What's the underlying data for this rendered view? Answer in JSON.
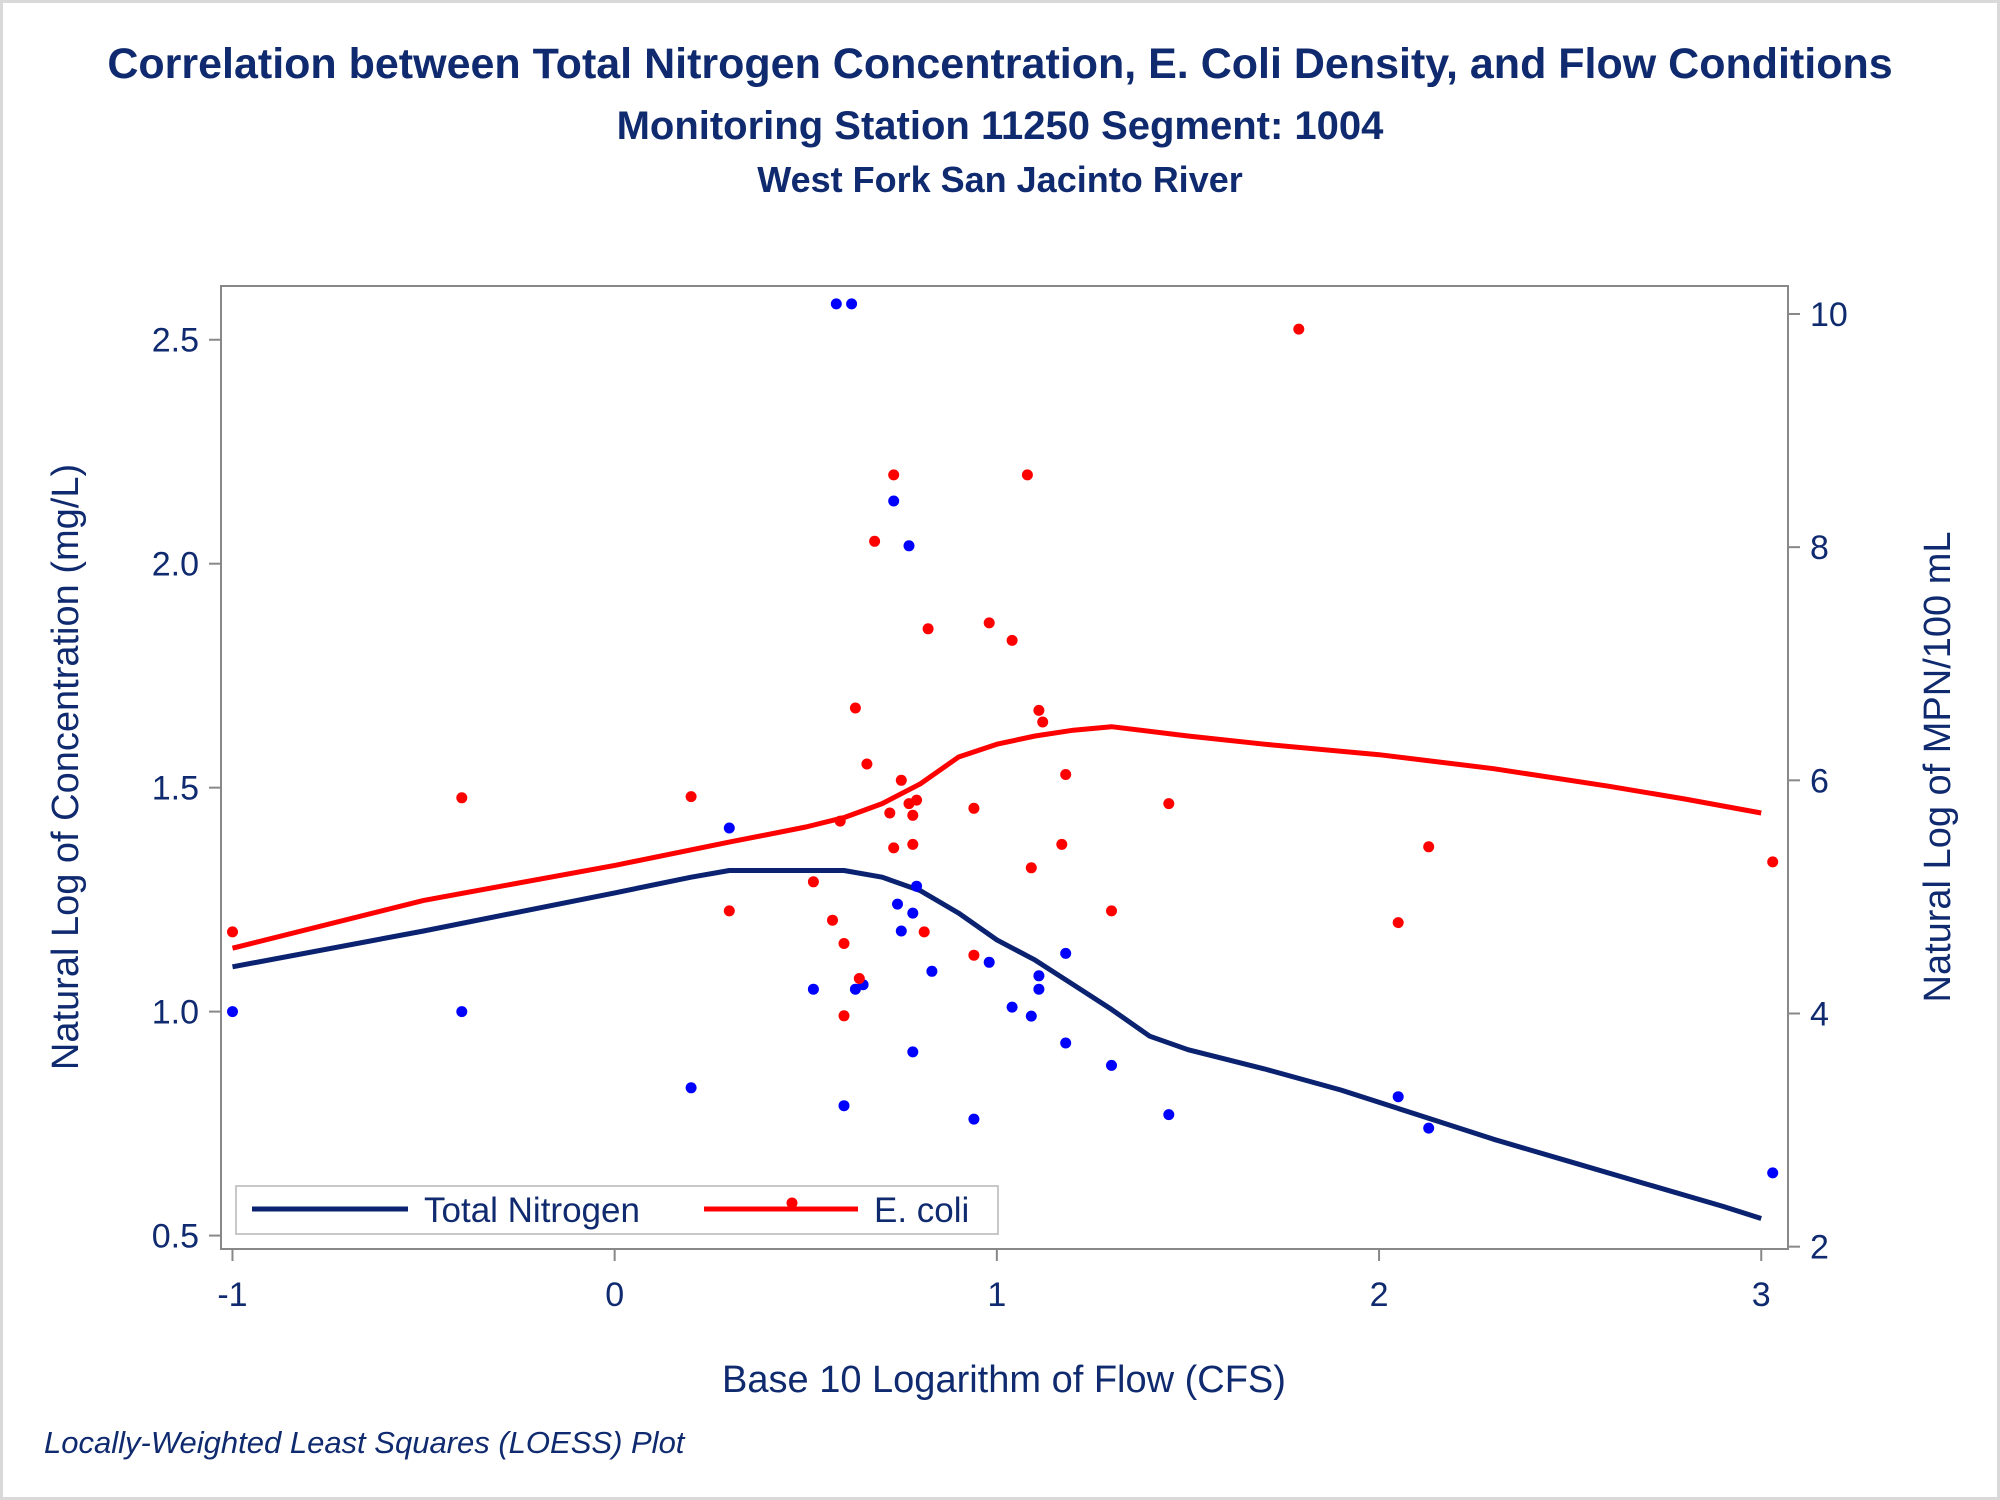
{
  "title": "Correlation between Total Nitrogen Concentration, E. Coli Density, and Flow Conditions",
  "subtitle": "Monitoring Station 11250 Segment: 1004",
  "subtitle2": "West Fork San Jacinto River",
  "footnote": "Locally-Weighted Least Squares (LOESS) Plot",
  "colors": {
    "nitrogen": "#0a2270",
    "ecoli": "#ff0000",
    "nitrogen_points": "#0000ff",
    "text": "#0f2a6e",
    "axis": "#888888"
  },
  "chart_data": {
    "type": "scatter",
    "xlabel": "Base 10 Logarithm of Flow (CFS)",
    "ylabel": "Natural Log of Concentration (mg/L)",
    "y2label": "Natural Log of MPN/100 mL",
    "xlim": [
      -1.03,
      3.07
    ],
    "ylim": [
      0.47,
      2.62
    ],
    "y2lim": [
      1.98,
      10.24
    ],
    "xticks": [
      "-1",
      "0",
      "1",
      "2",
      "3"
    ],
    "yticks": [
      "0.5",
      "1.0",
      "1.5",
      "2.0",
      "2.5"
    ],
    "y2ticks": [
      "2",
      "4",
      "6",
      "8",
      "10"
    ],
    "legend_position": "bottom-left",
    "series": [
      {
        "name": "Total Nitrogen",
        "axis": "left",
        "points": [
          [
            -1.0,
            1.0
          ],
          [
            -0.4,
            1.0
          ],
          [
            0.2,
            0.83
          ],
          [
            0.3,
            1.41
          ],
          [
            0.52,
            1.05
          ],
          [
            0.58,
            2.58
          ],
          [
            0.6,
            0.79
          ],
          [
            0.62,
            2.58
          ],
          [
            0.63,
            1.05
          ],
          [
            0.65,
            1.06
          ],
          [
            0.73,
            2.14
          ],
          [
            0.74,
            1.24
          ],
          [
            0.75,
            1.18
          ],
          [
            0.77,
            2.04
          ],
          [
            0.78,
            0.91
          ],
          [
            0.78,
            1.22
          ],
          [
            0.79,
            1.28
          ],
          [
            0.83,
            1.09
          ],
          [
            0.94,
            0.76
          ],
          [
            0.98,
            1.11
          ],
          [
            1.04,
            1.01
          ],
          [
            1.09,
            0.99
          ],
          [
            1.11,
            1.08
          ],
          [
            1.11,
            1.05
          ],
          [
            1.18,
            0.93
          ],
          [
            1.18,
            1.13
          ],
          [
            1.3,
            0.88
          ],
          [
            1.45,
            0.77
          ],
          [
            2.05,
            0.81
          ],
          [
            2.13,
            0.74
          ],
          [
            3.03,
            0.64
          ]
        ],
        "loess": [
          [
            -1.0,
            1.1
          ],
          [
            -0.5,
            1.18
          ],
          [
            0.0,
            1.265
          ],
          [
            0.2,
            1.3
          ],
          [
            0.3,
            1.315
          ],
          [
            0.5,
            1.315
          ],
          [
            0.6,
            1.315
          ],
          [
            0.7,
            1.3
          ],
          [
            0.8,
            1.27
          ],
          [
            0.9,
            1.22
          ],
          [
            1.0,
            1.16
          ],
          [
            1.1,
            1.115
          ],
          [
            1.2,
            1.06
          ],
          [
            1.3,
            1.005
          ],
          [
            1.4,
            0.945
          ],
          [
            1.5,
            0.915
          ],
          [
            1.7,
            0.872
          ],
          [
            1.9,
            0.825
          ],
          [
            2.1,
            0.77
          ],
          [
            2.3,
            0.715
          ],
          [
            2.5,
            0.665
          ],
          [
            2.7,
            0.615
          ],
          [
            2.9,
            0.565
          ],
          [
            3.0,
            0.538
          ]
        ]
      },
      {
        "name": "E. coli",
        "axis": "right",
        "points": [
          [
            -1.0,
            4.7
          ],
          [
            -0.4,
            5.85
          ],
          [
            0.2,
            5.86
          ],
          [
            0.3,
            4.88
          ],
          [
            0.52,
            5.13
          ],
          [
            0.57,
            4.8
          ],
          [
            0.59,
            5.65
          ],
          [
            0.6,
            3.98
          ],
          [
            0.6,
            4.6
          ],
          [
            0.63,
            6.62
          ],
          [
            0.64,
            4.3
          ],
          [
            0.66,
            6.14
          ],
          [
            0.68,
            8.05
          ],
          [
            0.72,
            5.72
          ],
          [
            0.73,
            5.42
          ],
          [
            0.73,
            8.62
          ],
          [
            0.75,
            6.0
          ],
          [
            0.77,
            5.8
          ],
          [
            0.78,
            5.45
          ],
          [
            0.78,
            5.7
          ],
          [
            0.79,
            5.83
          ],
          [
            0.81,
            4.7
          ],
          [
            0.82,
            7.3
          ],
          [
            0.94,
            4.5
          ],
          [
            0.94,
            5.76
          ],
          [
            0.98,
            7.35
          ],
          [
            1.04,
            7.2
          ],
          [
            1.08,
            8.62
          ],
          [
            1.09,
            5.25
          ],
          [
            1.11,
            6.6
          ],
          [
            1.12,
            6.5
          ],
          [
            1.17,
            5.45
          ],
          [
            1.18,
            6.05
          ],
          [
            1.3,
            4.88
          ],
          [
            1.45,
            5.8
          ],
          [
            1.79,
            9.87
          ],
          [
            2.05,
            4.78
          ],
          [
            2.13,
            5.43
          ],
          [
            3.03,
            5.3
          ]
        ],
        "loess": [
          [
            -1.0,
            4.56
          ],
          [
            -0.5,
            4.97
          ],
          [
            0.0,
            5.27
          ],
          [
            0.3,
            5.47
          ],
          [
            0.5,
            5.6
          ],
          [
            0.6,
            5.68
          ],
          [
            0.7,
            5.8
          ],
          [
            0.8,
            5.97
          ],
          [
            0.9,
            6.2
          ],
          [
            1.0,
            6.31
          ],
          [
            1.1,
            6.38
          ],
          [
            1.2,
            6.43
          ],
          [
            1.3,
            6.46
          ],
          [
            1.5,
            6.38
          ],
          [
            1.7,
            6.31
          ],
          [
            2.0,
            6.22
          ],
          [
            2.3,
            6.1
          ],
          [
            2.6,
            5.95
          ],
          [
            2.8,
            5.84
          ],
          [
            3.0,
            5.72
          ]
        ]
      }
    ]
  }
}
